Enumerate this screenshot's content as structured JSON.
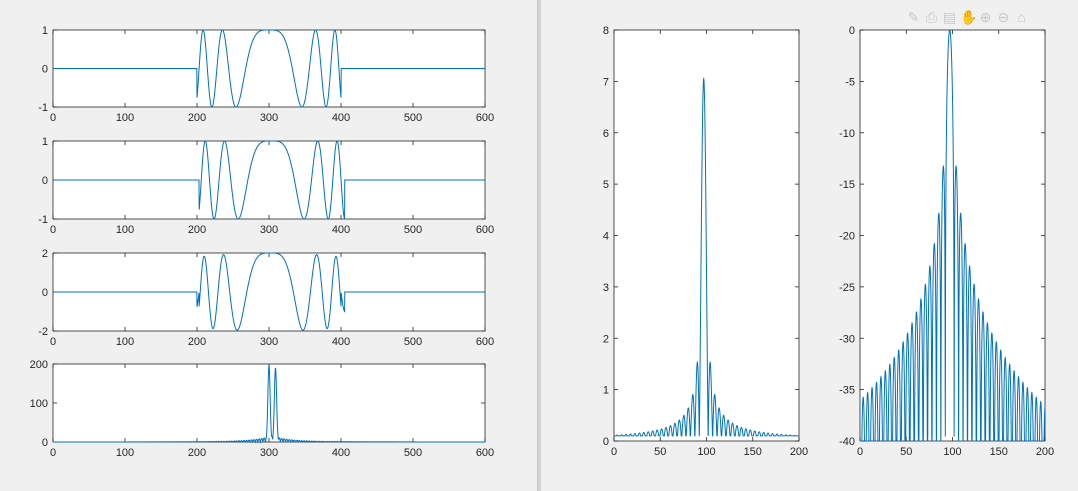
{
  "toolbar": {
    "icons": [
      "brush-icon",
      "print-icon",
      "data-tips-icon",
      "pan-icon",
      "zoom-in-icon",
      "zoom-out-icon",
      "home-icon"
    ]
  },
  "colors": {
    "line": "#0072bd",
    "axes": "#262626",
    "background": "#f0f0f0",
    "plot_bg": "#ffffff"
  },
  "chart_data": [
    {
      "type": "line",
      "title": "",
      "xlabel": "",
      "ylabel": "",
      "xlim": [
        0,
        600
      ],
      "ylim": [
        -1,
        1
      ],
      "xticks": [
        0,
        100,
        200,
        300,
        400,
        500,
        600
      ],
      "yticks": [
        -1,
        0,
        1
      ],
      "description_of_signal": "zero outside 200-400; cos(k*(x-300)^2) chirp between",
      "series": [
        {
          "formula": "chirp",
          "support": [
            200,
            400
          ],
          "amplitude": 1,
          "k": 0.0015
        }
      ]
    },
    {
      "type": "line",
      "title": "",
      "xlabel": "",
      "ylabel": "",
      "xlim": [
        0,
        600
      ],
      "ylim": [
        -1,
        1
      ],
      "xticks": [
        0,
        100,
        200,
        300,
        400,
        500,
        600
      ],
      "yticks": [
        -1,
        0,
        1
      ],
      "series": [
        {
          "formula": "chirp",
          "support": [
            200,
            405
          ],
          "amplitude": 1,
          "k": 0.0015,
          "shift": 3
        }
      ]
    },
    {
      "type": "line",
      "title": "",
      "xlabel": "",
      "ylabel": "",
      "xlim": [
        0,
        600
      ],
      "ylim": [
        -2,
        2
      ],
      "xticks": [
        0,
        100,
        200,
        300,
        400,
        500,
        600
      ],
      "yticks": [
        -2,
        0,
        2
      ],
      "series": [
        {
          "formula": "sum_of_chirps",
          "support": [
            200,
            405
          ],
          "amplitude": 1,
          "k": 0.0015,
          "shift": 3
        }
      ]
    },
    {
      "type": "line",
      "title": "",
      "xlabel": "",
      "ylabel": "",
      "xlim": [
        0,
        600
      ],
      "ylim": [
        0,
        200
      ],
      "xticks": [
        0,
        100,
        200,
        300,
        400,
        500,
        600
      ],
      "yticks": [
        0,
        100,
        200
      ],
      "series": [
        {
          "formula": "correlation_peak",
          "peaks": [
            {
              "x": 300,
              "y": 197
            },
            {
              "x": 309,
              "y": 190
            }
          ]
        }
      ]
    },
    {
      "type": "line",
      "title": "",
      "xlabel": "",
      "ylabel": "",
      "xlim": [
        0,
        200
      ],
      "ylim": [
        0,
        8
      ],
      "xticks": [
        0,
        50,
        100,
        150,
        200
      ],
      "yticks": [
        0,
        1,
        2,
        3,
        4,
        5,
        6,
        7,
        8
      ],
      "series": [
        {
          "formula": "sinc_magnitude",
          "center": 97,
          "peak": 7.05,
          "sidelobe_peaks": [
            {
              "x": 92,
              "y": 1.48
            },
            {
              "x": 102,
              "y": 1.48
            }
          ],
          "floor": 0.13
        }
      ]
    },
    {
      "type": "line",
      "title": "",
      "xlabel": "",
      "ylabel": "",
      "xlim": [
        0,
        200
      ],
      "ylim": [
        -40,
        0
      ],
      "xticks": [
        0,
        50,
        100,
        150,
        200
      ],
      "yticks": [
        -40,
        -35,
        -30,
        -25,
        -20,
        -15,
        -10,
        -5,
        0
      ],
      "series": [
        {
          "formula": "sinc_db",
          "center": 97,
          "peak": 0,
          "first_sidelobe": -13.3,
          "edge_level": -34
        }
      ]
    }
  ]
}
